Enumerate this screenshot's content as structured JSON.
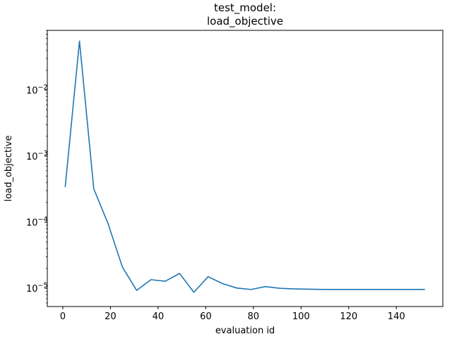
{
  "chart_data": {
    "type": "line",
    "title_lines": [
      "test_model:",
      "load_objective"
    ],
    "xlabel": "evaluation id",
    "ylabel": "load_objective",
    "x_ticks": [
      0,
      20,
      40,
      60,
      80,
      100,
      120,
      140
    ],
    "y_ticks": [
      {
        "value": 1e-05,
        "base": "10",
        "exp": "−5"
      },
      {
        "value": 0.0001,
        "base": "10",
        "exp": "−4"
      },
      {
        "value": 0.001,
        "base": "10",
        "exp": "−3"
      },
      {
        "value": 0.01,
        "base": "10",
        "exp": "−2"
      }
    ],
    "y_scale": "log",
    "xlim": [
      -6.5,
      159.5
    ],
    "ylim": [
      5.3e-06,
      0.08
    ],
    "grid": false,
    "series": [
      {
        "color": "#1f77b4",
        "x": [
          1,
          7,
          13,
          19,
          25,
          31,
          37,
          43,
          49,
          55,
          61,
          67,
          73,
          79,
          85,
          91,
          97,
          103,
          109,
          115,
          121,
          127,
          133,
          139,
          145,
          152
        ],
        "y": [
          0.00034,
          0.055,
          0.00032,
          9.5e-05,
          2.1e-05,
          9.3e-06,
          1.35e-05,
          1.28e-05,
          1.68e-05,
          8.7e-06,
          1.5e-05,
          1.18e-05,
          1.01e-05,
          9.6e-06,
          1.06e-05,
          1e-05,
          9.8e-06,
          9.7e-06,
          9.6e-06,
          9.6e-06,
          9.6e-06,
          9.6e-06,
          9.6e-06,
          9.6e-06,
          9.6e-06,
          9.6e-06
        ]
      }
    ]
  }
}
